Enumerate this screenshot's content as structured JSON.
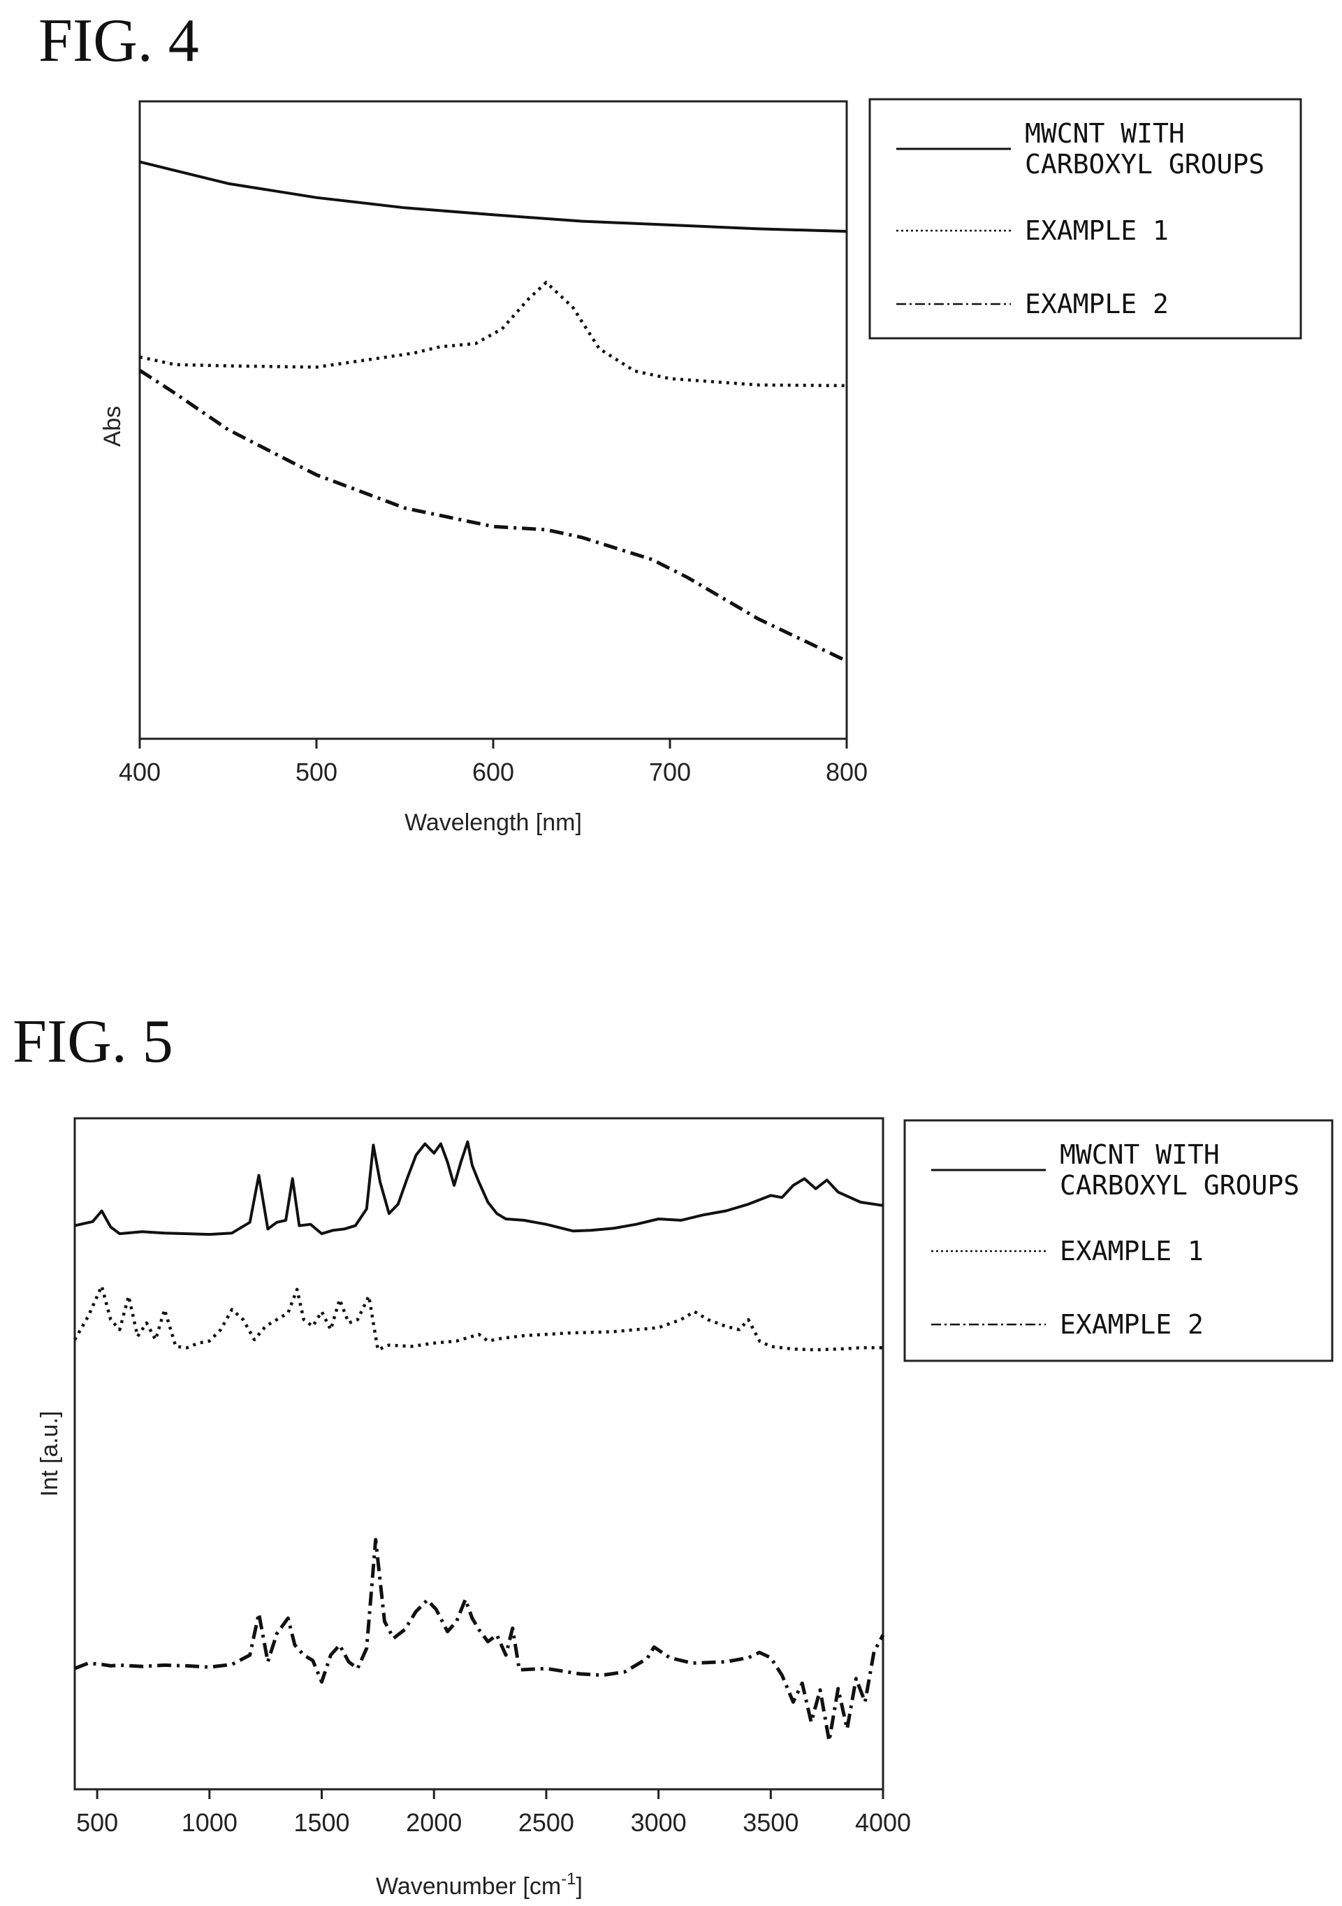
{
  "figures": {
    "fig4_title": "FIG. 4",
    "fig5_title": "FIG. 5"
  },
  "colors": {
    "line": "#111111",
    "frame": "#222222",
    "background": "#ffffff"
  },
  "chart_data": [
    {
      "type": "line",
      "title": "FIG. 4",
      "xlabel": "Wavelength [nm]",
      "ylabel": "Abs",
      "xlim": [
        400,
        800
      ],
      "ylim": [
        0,
        1
      ],
      "xticks": [
        400,
        500,
        600,
        700,
        800
      ],
      "grid": false,
      "legend": "right",
      "series": [
        {
          "name": "MWCNT WITH CARBOXYL GROUPS",
          "style": "solid",
          "x": [
            400,
            450,
            500,
            550,
            600,
            650,
            700,
            750,
            800
          ],
          "y": [
            0.905,
            0.871,
            0.849,
            0.833,
            0.822,
            0.812,
            0.806,
            0.8,
            0.796
          ]
        },
        {
          "name": "EXAMPLE 1",
          "style": "dotted",
          "x": [
            400,
            420,
            450,
            500,
            530,
            555,
            570,
            590,
            605,
            620,
            630,
            645,
            660,
            680,
            700,
            750,
            800
          ],
          "y": [
            0.599,
            0.587,
            0.585,
            0.583,
            0.595,
            0.605,
            0.615,
            0.62,
            0.643,
            0.69,
            0.716,
            0.677,
            0.612,
            0.577,
            0.565,
            0.555,
            0.554
          ]
        },
        {
          "name": "EXAMPLE 2",
          "style": "dashdot",
          "x": [
            400,
            420,
            450,
            500,
            550,
            600,
            630,
            650,
            690,
            710,
            750,
            800
          ],
          "y": [
            0.578,
            0.542,
            0.485,
            0.414,
            0.362,
            0.333,
            0.328,
            0.316,
            0.281,
            0.253,
            0.188,
            0.122
          ]
        }
      ]
    },
    {
      "type": "line",
      "title": "FIG. 5",
      "xlabel": "Wavenumber [cm",
      "xlabel_sup": "-1",
      "xlabel_end": "]",
      "ylabel": "Int [a.u.]",
      "xlim": [
        400,
        4000
      ],
      "ylim": [
        0,
        1
      ],
      "xticks": [
        500,
        1000,
        1500,
        2000,
        2500,
        3000,
        3500,
        4000
      ],
      "grid": false,
      "legend": "right",
      "series": [
        {
          "name": "MWCNT WITH CARBOXYL GROUPS",
          "style": "solid",
          "x": [
            400,
            480,
            520,
            560,
            600,
            700,
            800,
            900,
            1000,
            1100,
            1180,
            1220,
            1260,
            1300,
            1340,
            1370,
            1400,
            1450,
            1500,
            1550,
            1600,
            1650,
            1700,
            1730,
            1760,
            1800,
            1840,
            1880,
            1920,
            1960,
            2000,
            2030,
            2060,
            2090,
            2120,
            2150,
            2170,
            2200,
            2240,
            2280,
            2320,
            2400,
            2500,
            2620,
            2700,
            2800,
            2900,
            3000,
            3100,
            3200,
            3300,
            3400,
            3500,
            3550,
            3600,
            3650,
            3700,
            3750,
            3800,
            3900,
            4000
          ],
          "y": [
            0.84,
            0.846,
            0.862,
            0.838,
            0.828,
            0.831,
            0.829,
            0.828,
            0.827,
            0.829,
            0.845,
            0.915,
            0.835,
            0.845,
            0.848,
            0.91,
            0.84,
            0.842,
            0.828,
            0.833,
            0.835,
            0.84,
            0.865,
            0.96,
            0.905,
            0.858,
            0.872,
            0.91,
            0.945,
            0.962,
            0.948,
            0.962,
            0.935,
            0.9,
            0.935,
            0.965,
            0.93,
            0.905,
            0.875,
            0.858,
            0.85,
            0.848,
            0.842,
            0.832,
            0.833,
            0.836,
            0.842,
            0.85,
            0.848,
            0.856,
            0.862,
            0.872,
            0.885,
            0.882,
            0.9,
            0.91,
            0.895,
            0.908,
            0.89,
            0.875,
            0.87
          ]
        },
        {
          "name": "EXAMPLE 1",
          "style": "dotted",
          "x": [
            400,
            460,
            520,
            560,
            600,
            640,
            680,
            720,
            760,
            800,
            850,
            900,
            950,
            1000,
            1050,
            1100,
            1150,
            1200,
            1250,
            1300,
            1350,
            1390,
            1420,
            1460,
            1500,
            1540,
            1580,
            1620,
            1660,
            1710,
            1750,
            1800,
            1900,
            2000,
            2100,
            2200,
            2240,
            2300,
            2400,
            2600,
            2800,
            3000,
            3100,
            3160,
            3220,
            3300,
            3360,
            3400,
            3450,
            3500,
            3600,
            3700,
            3800,
            3900,
            4000
          ],
          "y": [
            0.67,
            0.705,
            0.75,
            0.7,
            0.685,
            0.735,
            0.675,
            0.695,
            0.67,
            0.715,
            0.66,
            0.658,
            0.665,
            0.668,
            0.685,
            0.715,
            0.7,
            0.67,
            0.69,
            0.7,
            0.71,
            0.745,
            0.7,
            0.69,
            0.712,
            0.685,
            0.73,
            0.695,
            0.7,
            0.735,
            0.655,
            0.662,
            0.66,
            0.665,
            0.668,
            0.678,
            0.668,
            0.672,
            0.676,
            0.68,
            0.682,
            0.688,
            0.7,
            0.712,
            0.7,
            0.69,
            0.685,
            0.7,
            0.668,
            0.66,
            0.656,
            0.655,
            0.656,
            0.658,
            0.658
          ]
        },
        {
          "name": "EXAMPLE 2",
          "style": "dashdot",
          "x": [
            400,
            460,
            520,
            560,
            600,
            700,
            800,
            900,
            1000,
            1100,
            1180,
            1220,
            1260,
            1300,
            1350,
            1380,
            1420,
            1460,
            1500,
            1540,
            1580,
            1620,
            1660,
            1700,
            1740,
            1780,
            1820,
            1870,
            1920,
            1970,
            2010,
            2060,
            2100,
            2140,
            2170,
            2200,
            2240,
            2280,
            2320,
            2350,
            2380,
            2500,
            2650,
            2750,
            2850,
            2950,
            2980,
            3050,
            3150,
            3300,
            3400,
            3450,
            3500,
            3550,
            3600,
            3640,
            3680,
            3720,
            3760,
            3800,
            3840,
            3880,
            3920,
            3960,
            4000
          ],
          "y": [
            0.18,
            0.188,
            0.186,
            0.184,
            0.185,
            0.183,
            0.185,
            0.184,
            0.182,
            0.186,
            0.2,
            0.262,
            0.19,
            0.232,
            0.255,
            0.215,
            0.2,
            0.192,
            0.16,
            0.2,
            0.215,
            0.19,
            0.18,
            0.21,
            0.372,
            0.25,
            0.225,
            0.238,
            0.265,
            0.282,
            0.268,
            0.235,
            0.25,
            0.283,
            0.255,
            0.238,
            0.22,
            0.23,
            0.2,
            0.24,
            0.178,
            0.18,
            0.172,
            0.17,
            0.175,
            0.195,
            0.212,
            0.196,
            0.188,
            0.19,
            0.196,
            0.204,
            0.196,
            0.17,
            0.13,
            0.158,
            0.1,
            0.148,
            0.072,
            0.15,
            0.09,
            0.165,
            0.13,
            0.205,
            0.23
          ]
        }
      ]
    }
  ]
}
